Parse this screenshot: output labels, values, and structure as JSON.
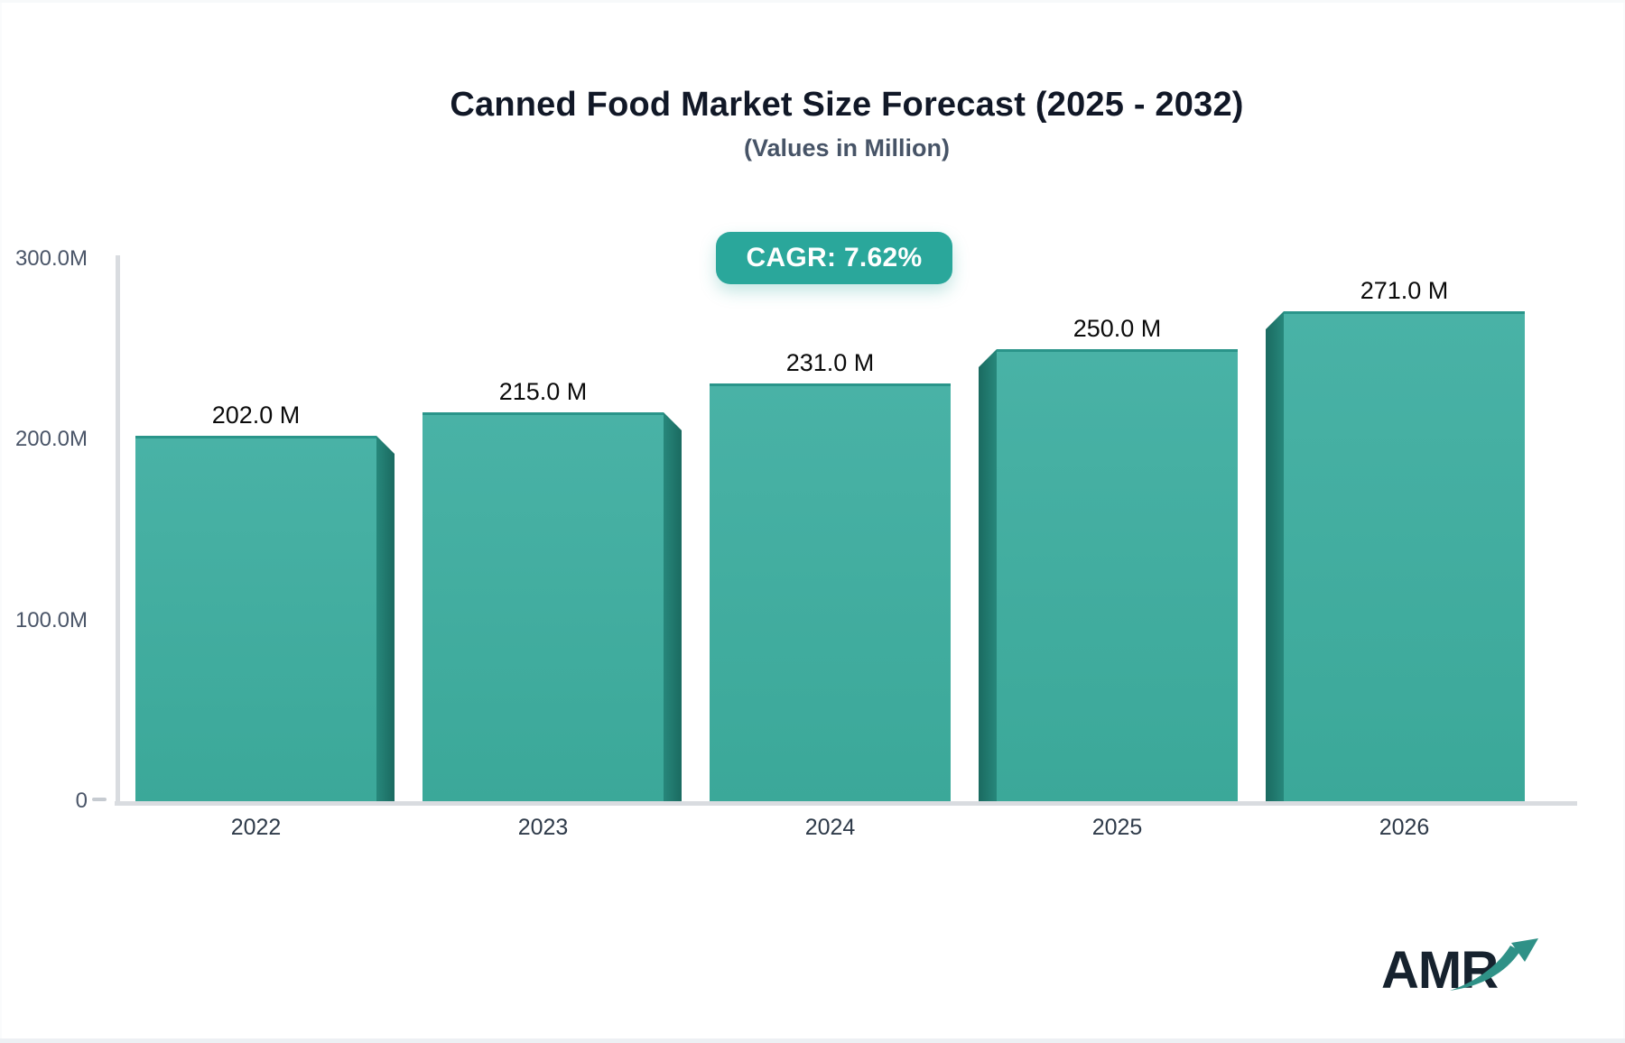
{
  "header": {
    "title": "Canned Food Market Size Forecast (2025 - 2032)",
    "subtitle": "(Values in Million)",
    "cagr_label": "CAGR: 7.62%"
  },
  "logo": {
    "text": "AMR"
  },
  "chart_data": {
    "type": "bar",
    "title": "Canned Food Market Size Forecast (2025 - 2032)",
    "subtitle": "(Values in Million)",
    "categories": [
      "2022",
      "2023",
      "2024",
      "2025",
      "2026"
    ],
    "values": [
      202,
      215,
      231,
      250,
      271
    ],
    "value_labels": [
      "202.0 M",
      "215.0 M",
      "231.0 M",
      "250.0 M",
      "271.0 M"
    ],
    "unit": "Million",
    "xlabel": "",
    "ylabel": "",
    "ylim": [
      0,
      300
    ],
    "y_ticks": [
      {
        "label": "300.0M",
        "value": 300
      },
      {
        "label": "200.0M",
        "value": 200
      },
      {
        "label": "100.0M",
        "value": 100
      },
      {
        "label": "0",
        "value": 0
      }
    ],
    "grid": false,
    "legend_position": "none",
    "annotations": [
      "CAGR: 7.62%"
    ],
    "colors": {
      "bar_top": "#49b2a6",
      "bar_bottom": "#3ba899",
      "bar_edge": "#2a958a",
      "bar_side_dark": "#1a6a60",
      "bar_side_light": "#27877b",
      "badge_bg": "#2aa79b",
      "axis_line": "#d9dce0",
      "title_color": "#111827",
      "subtitle_color": "#475467",
      "tick_color": "#4a5568",
      "logo_navy": "#16222e",
      "logo_teal": "#2f9187"
    }
  }
}
